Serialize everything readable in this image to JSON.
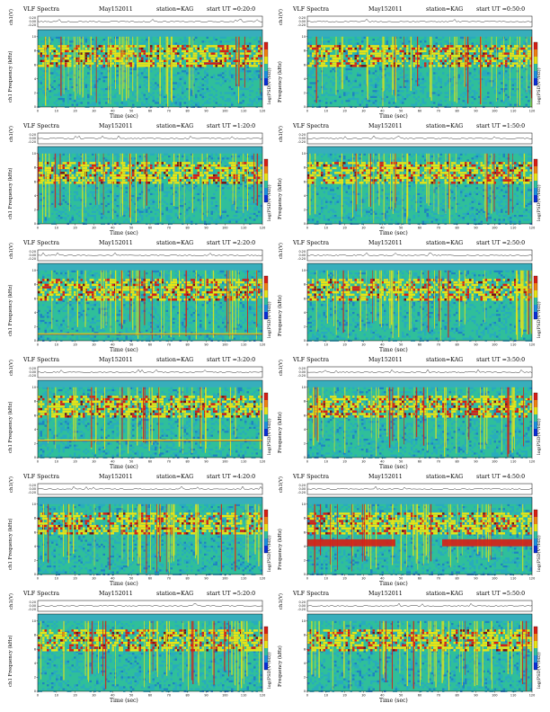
{
  "chart_data": [
    {
      "type": "heatmap",
      "position": "row1-left",
      "title_left": "VLF Spectra",
      "date": "May152011",
      "station": "station=KAG",
      "start_ut": "start UT =0:20:0",
      "ylabel_top": "ch1(V)",
      "ylabel_main": "Frequency (kHz)",
      "channel": "ch1",
      "xlabel": "Time (sec)",
      "colorbar_label": "log(PSD(V²/Hz))",
      "x_ticks": [
        "0",
        "10",
        "20",
        "30",
        "40",
        "50",
        "60",
        "70",
        "80",
        "90",
        "100",
        "110",
        "120"
      ],
      "y_ticks": [
        "0",
        "2",
        "4",
        "6",
        "8",
        "10"
      ],
      "ch_ticks": [
        "0.20",
        "0.00",
        "-0.20"
      ],
      "xlim": [
        0,
        120
      ],
      "ylim": [
        0,
        11
      ],
      "features": {
        "band_top": 10,
        "intense_band": [
          6,
          9
        ],
        "low_lines": []
      }
    },
    {
      "type": "heatmap",
      "position": "row1-right",
      "title_left": "VLF Spectra",
      "date": "May152011",
      "station": "station=KAG",
      "start_ut": "start UT =0:50:0",
      "ylabel_top": "ch1(V)",
      "ylabel_main": "Frequency (kHz)",
      "channel": "",
      "xlabel": "Time (sec)",
      "colorbar_label": "log(PSD(V²/Hz))",
      "x_ticks": [
        "0",
        "10",
        "20",
        "30",
        "40",
        "50",
        "60",
        "70",
        "80",
        "90",
        "100",
        "110",
        "120"
      ],
      "y_ticks": [
        "0",
        "2",
        "4",
        "6",
        "8",
        "10"
      ],
      "ch_ticks": [
        "0.20",
        "0.00",
        "-0.20"
      ],
      "xlim": [
        0,
        120
      ],
      "ylim": [
        0,
        11
      ],
      "features": {
        "band_top": 10,
        "intense_band": [
          6,
          9
        ],
        "low_lines": []
      }
    },
    {
      "type": "heatmap",
      "position": "row2-left",
      "title_left": "VLF Spectra",
      "date": "May152011",
      "station": "station=KAG",
      "start_ut": "start UT =1:20:0",
      "ylabel_top": "ch1(V)",
      "ylabel_main": "Frequency (kHz)",
      "channel": "ch1",
      "xlabel": "Time (sec)",
      "colorbar_label": "log(PSD(V²/Hz))",
      "x_ticks": [
        "0",
        "10",
        "20",
        "30",
        "40",
        "50",
        "60",
        "70",
        "80",
        "90",
        "100",
        "110",
        "120"
      ],
      "y_ticks": [
        "0",
        "2",
        "4",
        "6",
        "8",
        "10"
      ],
      "ch_ticks": [
        "0.20",
        "0.00",
        "-0.20"
      ],
      "xlim": [
        0,
        120
      ],
      "ylim": [
        0,
        11
      ],
      "features": {
        "band_top": 10,
        "intense_band": [
          6,
          9
        ],
        "low_lines": []
      }
    },
    {
      "type": "heatmap",
      "position": "row2-right",
      "title_left": "VLF Spectra",
      "date": "May152011",
      "station": "station=KAG",
      "start_ut": "start UT =1:50:0",
      "ylabel_top": "ch1(V)",
      "ylabel_main": "Frequency (kHz)",
      "channel": "",
      "xlabel": "Time (sec)",
      "colorbar_label": "log(PSD(V²/Hz))",
      "x_ticks": [
        "0",
        "10",
        "20",
        "30",
        "40",
        "50",
        "60",
        "70",
        "80",
        "90",
        "100",
        "110",
        "120"
      ],
      "y_ticks": [
        "0",
        "2",
        "4",
        "6",
        "8",
        "10"
      ],
      "ch_ticks": [
        "0.20",
        "0.00",
        "-0.20"
      ],
      "xlim": [
        0,
        120
      ],
      "ylim": [
        0,
        11
      ],
      "features": {
        "band_top": 10,
        "intense_band": [
          6,
          9
        ],
        "low_lines": []
      }
    },
    {
      "type": "heatmap",
      "position": "row3-left",
      "title_left": "VLF Spectra",
      "date": "May152011",
      "station": "station=KAG",
      "start_ut": "start UT =2:20:0",
      "ylabel_top": "ch1(V)",
      "ylabel_main": "Frequency (kHz)",
      "channel": "ch1",
      "xlabel": "Time (sec)",
      "colorbar_label": "log(PSD(V²/Hz))",
      "x_ticks": [
        "0",
        "10",
        "20",
        "30",
        "40",
        "50",
        "60",
        "70",
        "80",
        "90",
        "100",
        "110",
        "120"
      ],
      "y_ticks": [
        "0",
        "2",
        "4",
        "6",
        "8",
        "10"
      ],
      "ch_ticks": [
        "0.20",
        "0.00",
        "-0.20"
      ],
      "xlim": [
        0,
        120
      ],
      "ylim": [
        0,
        11
      ],
      "features": {
        "band_top": 10,
        "intense_band": [
          6,
          9
        ],
        "low_lines": [
          1
        ]
      }
    },
    {
      "type": "heatmap",
      "position": "row3-right",
      "title_left": "VLF Spectra",
      "date": "May152011",
      "station": "station=KAG",
      "start_ut": "start UT =2:50:0",
      "ylabel_top": "ch1(V)",
      "ylabel_main": "Frequency (kHz)",
      "channel": "",
      "xlabel": "Time (sec)",
      "colorbar_label": "log(PSD(V²/Hz))",
      "x_ticks": [
        "0",
        "10",
        "20",
        "30",
        "40",
        "50",
        "60",
        "70",
        "80",
        "90",
        "100",
        "110",
        "120"
      ],
      "y_ticks": [
        "0",
        "2",
        "4",
        "6",
        "8",
        "10"
      ],
      "ch_ticks": [
        "0.20",
        "0.00",
        "-0.20"
      ],
      "xlim": [
        0,
        120
      ],
      "ylim": [
        0,
        11
      ],
      "features": {
        "band_top": 10,
        "intense_band": [
          6,
          9
        ],
        "low_lines": []
      }
    },
    {
      "type": "heatmap",
      "position": "row4-left",
      "title_left": "VLF Spectra",
      "date": "May152011",
      "station": "station=KAG",
      "start_ut": "start UT =3:20:0",
      "ylabel_top": "ch1(V)",
      "ylabel_main": "Frequency (kHz)",
      "channel": "ch1",
      "xlabel": "Time (sec)",
      "colorbar_label": "log(PSD(V²/Hz))",
      "x_ticks": [
        "0",
        "10",
        "20",
        "30",
        "40",
        "50",
        "60",
        "70",
        "80",
        "90",
        "100",
        "110",
        "120"
      ],
      "y_ticks": [
        "0",
        "2",
        "4",
        "6",
        "8",
        "10"
      ],
      "ch_ticks": [
        "0.20",
        "0.00",
        "-0.20"
      ],
      "xlim": [
        0,
        120
      ],
      "ylim": [
        0,
        11
      ],
      "features": {
        "band_top": 10,
        "intense_band": [
          6,
          9
        ],
        "low_lines": [
          2.5
        ]
      }
    },
    {
      "type": "heatmap",
      "position": "row4-right",
      "title_left": "VLF Spectra",
      "date": "May152011",
      "station": "station=KAG",
      "start_ut": "start UT =3:50:0",
      "ylabel_top": "ch1(V)",
      "ylabel_main": "Frequency (kHz)",
      "channel": "",
      "xlabel": "Time (sec)",
      "colorbar_label": "log(PSD(V²/Hz))",
      "x_ticks": [
        "0",
        "10",
        "20",
        "30",
        "40",
        "50",
        "60",
        "70",
        "80",
        "90",
        "100",
        "110",
        "120"
      ],
      "y_ticks": [
        "0",
        "2",
        "4",
        "6",
        "8",
        "10"
      ],
      "ch_ticks": [
        "0.20",
        "0.00",
        "-0.20"
      ],
      "xlim": [
        0,
        120
      ],
      "ylim": [
        0,
        11
      ],
      "features": {
        "band_top": 10,
        "intense_band": [
          6,
          9
        ],
        "low_lines": []
      }
    },
    {
      "type": "heatmap",
      "position": "row5-left",
      "title_left": "VLF Spectra",
      "date": "May152011",
      "station": "station=KAG",
      "start_ut": "start UT =4:20:0",
      "ylabel_top": "ch1(V)",
      "ylabel_main": "Frequency (kHz)",
      "channel": "ch1",
      "xlabel": "Time (sec)",
      "colorbar_label": "log(PSD(V²/Hz))",
      "x_ticks": [
        "0",
        "10",
        "20",
        "30",
        "40",
        "50",
        "60",
        "70",
        "80",
        "90",
        "100",
        "110",
        "120"
      ],
      "y_ticks": [
        "0",
        "2",
        "4",
        "6",
        "8",
        "10"
      ],
      "ch_ticks": [
        "0.20",
        "0.00",
        "-0.20"
      ],
      "xlim": [
        0,
        120
      ],
      "ylim": [
        0,
        11
      ],
      "features": {
        "band_top": 10,
        "intense_band": [
          6,
          9
        ],
        "low_lines": []
      }
    },
    {
      "type": "heatmap",
      "position": "row5-right",
      "title_left": "VLF Spectra",
      "date": "May152011",
      "station": "station=KAG",
      "start_ut": "start UT =4:50:0",
      "ylabel_top": "ch1(V)",
      "ylabel_main": "Frequency (kHz)",
      "channel": "",
      "xlabel": "Time (sec)",
      "colorbar_label": "log(PSD(V²/Hz))",
      "x_ticks": [
        "0",
        "10",
        "20",
        "30",
        "40",
        "50",
        "60",
        "70",
        "80",
        "90",
        "100",
        "110",
        "120"
      ],
      "y_ticks": [
        "0",
        "2",
        "4",
        "6",
        "8",
        "10"
      ],
      "ch_ticks": [
        "0.20",
        "0.00",
        "-0.20"
      ],
      "xlim": [
        0,
        120
      ],
      "ylim": [
        0,
        11
      ],
      "features": {
        "band_top": 10,
        "intense_band": [
          6,
          9
        ],
        "low_lines": [],
        "strong_band": [
          4,
          5
        ]
      }
    },
    {
      "type": "heatmap",
      "position": "row6-left",
      "title_left": "VLF Spectra",
      "date": "May152011",
      "station": "station=KAG",
      "start_ut": "start UT =5:20:0",
      "ylabel_top": "ch1(V)",
      "ylabel_main": "Frequency (kHz)",
      "channel": "ch1",
      "xlabel": "Time (sec)",
      "colorbar_label": "log(PSD(V²/Hz))",
      "x_ticks": [
        "0",
        "10",
        "20",
        "30",
        "40",
        "50",
        "60",
        "70",
        "80",
        "90",
        "100",
        "110",
        "120"
      ],
      "y_ticks": [
        "0",
        "2",
        "4",
        "6",
        "8",
        "10"
      ],
      "ch_ticks": [
        "0.20",
        "0.00",
        "-0.20"
      ],
      "xlim": [
        0,
        120
      ],
      "ylim": [
        0,
        11
      ],
      "features": {
        "band_top": 10,
        "intense_band": [
          6,
          9
        ],
        "low_lines": []
      }
    },
    {
      "type": "heatmap",
      "position": "row6-right",
      "title_left": "VLF Spectra",
      "date": "May152011",
      "station": "station=KAG",
      "start_ut": "start UT =5:50:0",
      "ylabel_top": "ch1(V)",
      "ylabel_main": "Frequency (kHz)",
      "channel": "",
      "xlabel": "Time (sec)",
      "colorbar_label": "log(PSD(V²/Hz))",
      "x_ticks": [
        "0",
        "10",
        "20",
        "30",
        "40",
        "50",
        "60",
        "70",
        "80",
        "90",
        "100",
        "110",
        "120"
      ],
      "y_ticks": [
        "0",
        "2",
        "4",
        "6",
        "8",
        "10"
      ],
      "ch_ticks": [
        "0.20",
        "0.00",
        "-0.20"
      ],
      "xlim": [
        0,
        120
      ],
      "ylim": [
        0,
        11
      ],
      "features": {
        "band_top": 10,
        "intense_band": [
          6,
          9
        ],
        "low_lines": []
      }
    }
  ],
  "colors": {
    "background": "#2fbf9a",
    "noise": "#27a6c8",
    "yellow": "#e8e414",
    "red": "#d81e14",
    "dark": "#7a1010",
    "blue": "#0a2fd8"
  }
}
